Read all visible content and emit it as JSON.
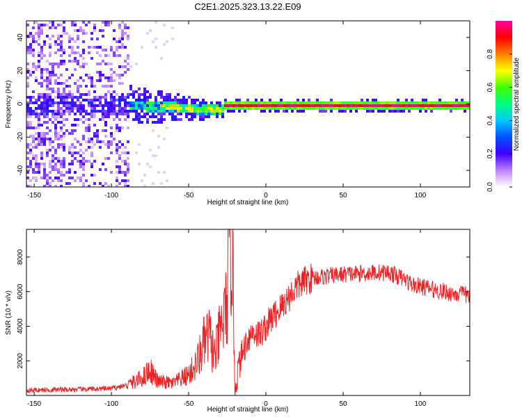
{
  "chart_data": [
    {
      "type": "heatmap",
      "title": "C2E1.2025.323.13.22.E09",
      "xlabel": "Height of straight line (km)",
      "ylabel": "Frequency (Hz)",
      "xlim": [
        -155,
        132
      ],
      "ylim": [
        -50,
        50
      ],
      "x_ticks": [
        "-150",
        "-100",
        "-50",
        "0",
        "50",
        "100"
      ],
      "y_ticks": [
        "-40",
        "-20",
        "0",
        "20",
        "40"
      ],
      "colorbar": {
        "label": "Normalized spectral amplitude",
        "range": [
          0.0,
          1.0
        ],
        "ticks": [
          "0.0",
          "0.2",
          "0.4",
          "0.6",
          "0.8"
        ],
        "colors": [
          "#ffffff",
          "#c080ff",
          "#4000ff",
          "#0050ff",
          "#00c8ff",
          "#00ff80",
          "#40ff00",
          "#ffff00",
          "#ff8000",
          "#ff0000",
          "#ff00a0"
        ]
      },
      "features": {
        "signal_line_frequency_hz": 0,
        "scatter_region_km": [
          -155,
          -90
        ],
        "transition_region_km": [
          -90,
          -28
        ],
        "steady_signal_region_km": [
          -28,
          132
        ]
      }
    },
    {
      "type": "line",
      "xlabel": "Height of straight line (km)",
      "ylabel": "SNR (10 * v/v)",
      "xlim": [
        -155,
        132
      ],
      "ylim": [
        0,
        9600
      ],
      "x_ticks": [
        "-150",
        "-100",
        "-50",
        "0",
        "50",
        "100"
      ],
      "y_ticks": [
        "2000",
        "4000",
        "6000",
        "8000"
      ],
      "line_color": "#ee2222",
      "series": [
        {
          "name": "SNR",
          "x": [
            -155,
            -120,
            -100,
            -90,
            -80,
            -75,
            -70,
            -60,
            -50,
            -45,
            -40,
            -37,
            -33,
            -30,
            -26,
            -22,
            -20,
            -18,
            -15,
            -12,
            -8,
            -4,
            0,
            5,
            10,
            15,
            20,
            25,
            30,
            40,
            50,
            60,
            70,
            80,
            85,
            90,
            95,
            100,
            110,
            120,
            132
          ],
          "y": [
            300,
            350,
            400,
            600,
            1000,
            1500,
            800,
            700,
            1200,
            1800,
            3000,
            3500,
            2200,
            3500,
            4800,
            9600,
            300,
            1500,
            2500,
            3300,
            3700,
            3500,
            4000,
            4600,
            5100,
            5700,
            6300,
            6600,
            6800,
            6900,
            7000,
            7050,
            7100,
            7100,
            6900,
            6700,
            6400,
            6300,
            6100,
            5900,
            5800
          ]
        }
      ]
    }
  ]
}
